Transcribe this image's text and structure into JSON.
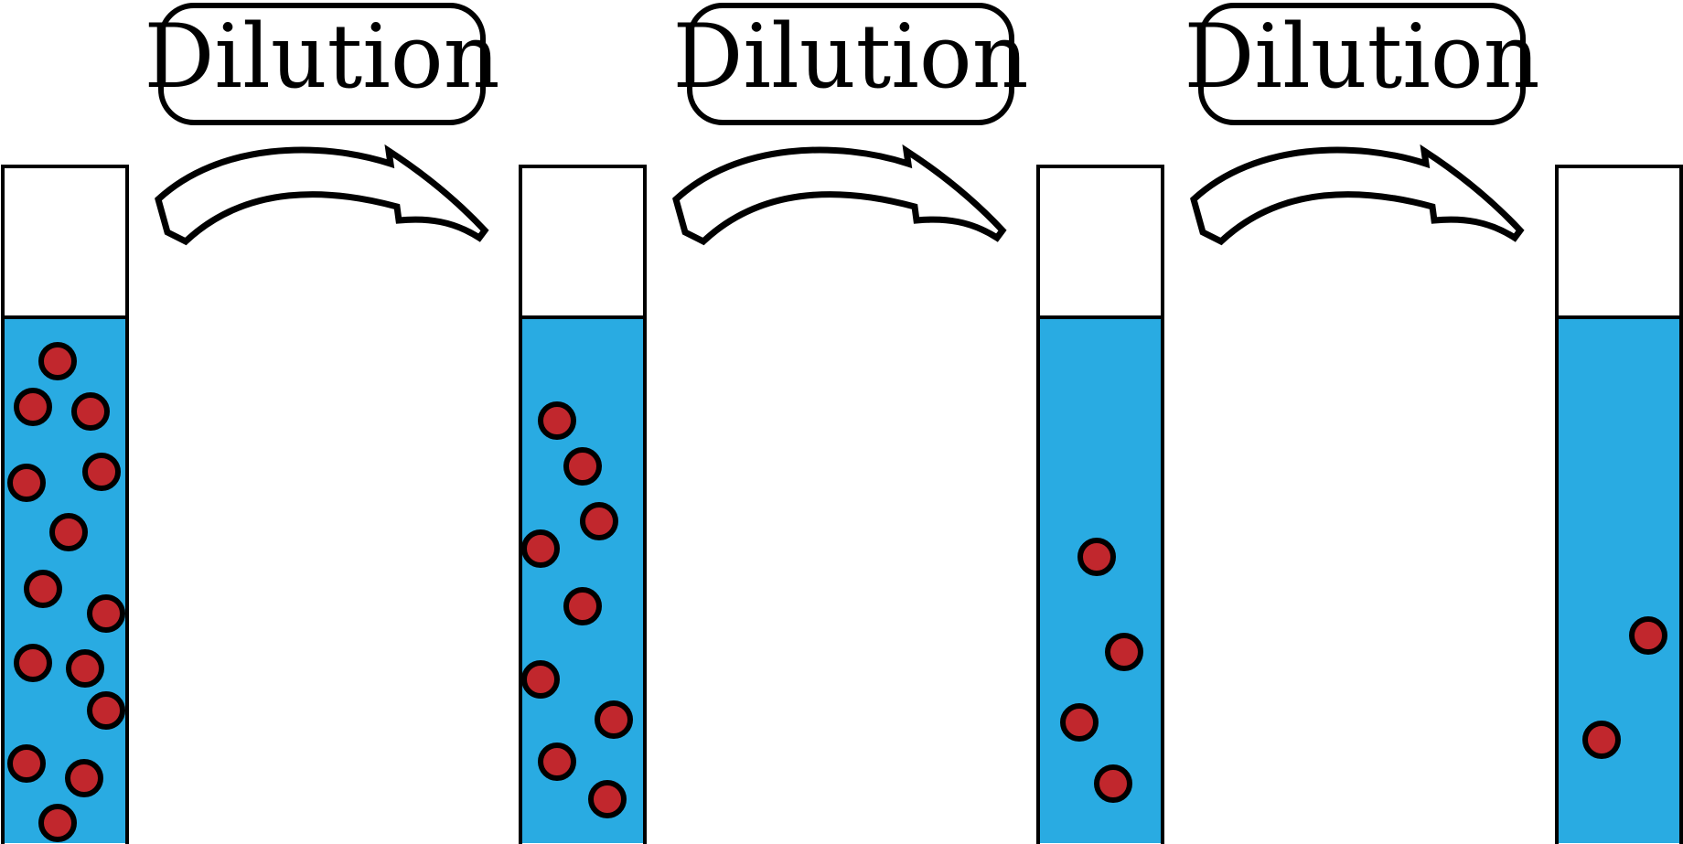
{
  "colors": {
    "liquid": "#29abe2",
    "particle": "#c1272d",
    "stroke": "#000000",
    "background": "#ffffff"
  },
  "steps": [
    {
      "label": "Dilution",
      "arrow_icon": "curved-arrow-right-icon"
    },
    {
      "label": "Dilution",
      "arrow_icon": "curved-arrow-right-icon"
    },
    {
      "label": "Dilution",
      "arrow_icon": "curved-arrow-right-icon"
    }
  ],
  "tubes": [
    {
      "particle_count": 14
    },
    {
      "particle_count": 9
    },
    {
      "particle_count": 4
    },
    {
      "particle_count": 2
    }
  ]
}
